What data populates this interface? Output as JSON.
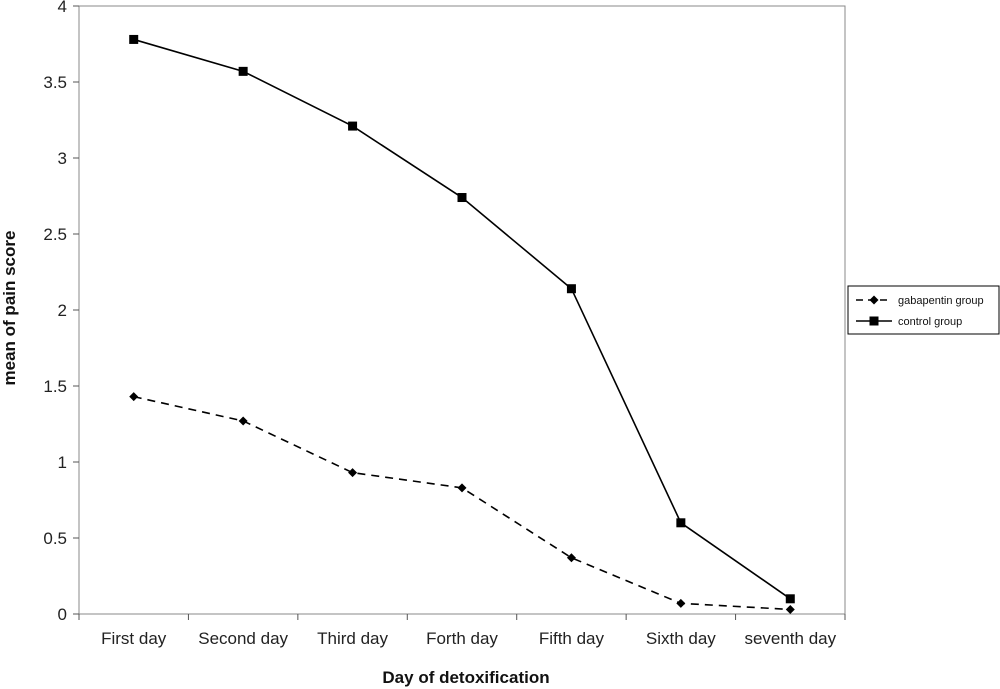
{
  "chart_data": {
    "type": "line",
    "title": "",
    "xlabel": "Day of detoxification",
    "ylabel": "mean of pain score",
    "ylim": [
      0,
      4
    ],
    "yticks": [
      "0",
      "0.5",
      "1",
      "1.5",
      "2",
      "2.5",
      "3",
      "3.5",
      "4"
    ],
    "categories": [
      "First day",
      "Second day",
      "Third day",
      "Forth day",
      "Fifth day",
      "Sixth day",
      "seventh day"
    ],
    "grid": false,
    "legend_position": "right",
    "series": [
      {
        "name": "gabapentin group",
        "marker": "diamond",
        "line_style": "dashed",
        "color": "#000000",
        "values": [
          1.43,
          1.27,
          0.93,
          0.83,
          0.37,
          0.07,
          0.03
        ]
      },
      {
        "name": "control group",
        "marker": "square",
        "line_style": "solid",
        "color": "#000000",
        "values": [
          3.78,
          3.57,
          3.21,
          2.74,
          2.14,
          0.6,
          0.1
        ]
      }
    ]
  }
}
